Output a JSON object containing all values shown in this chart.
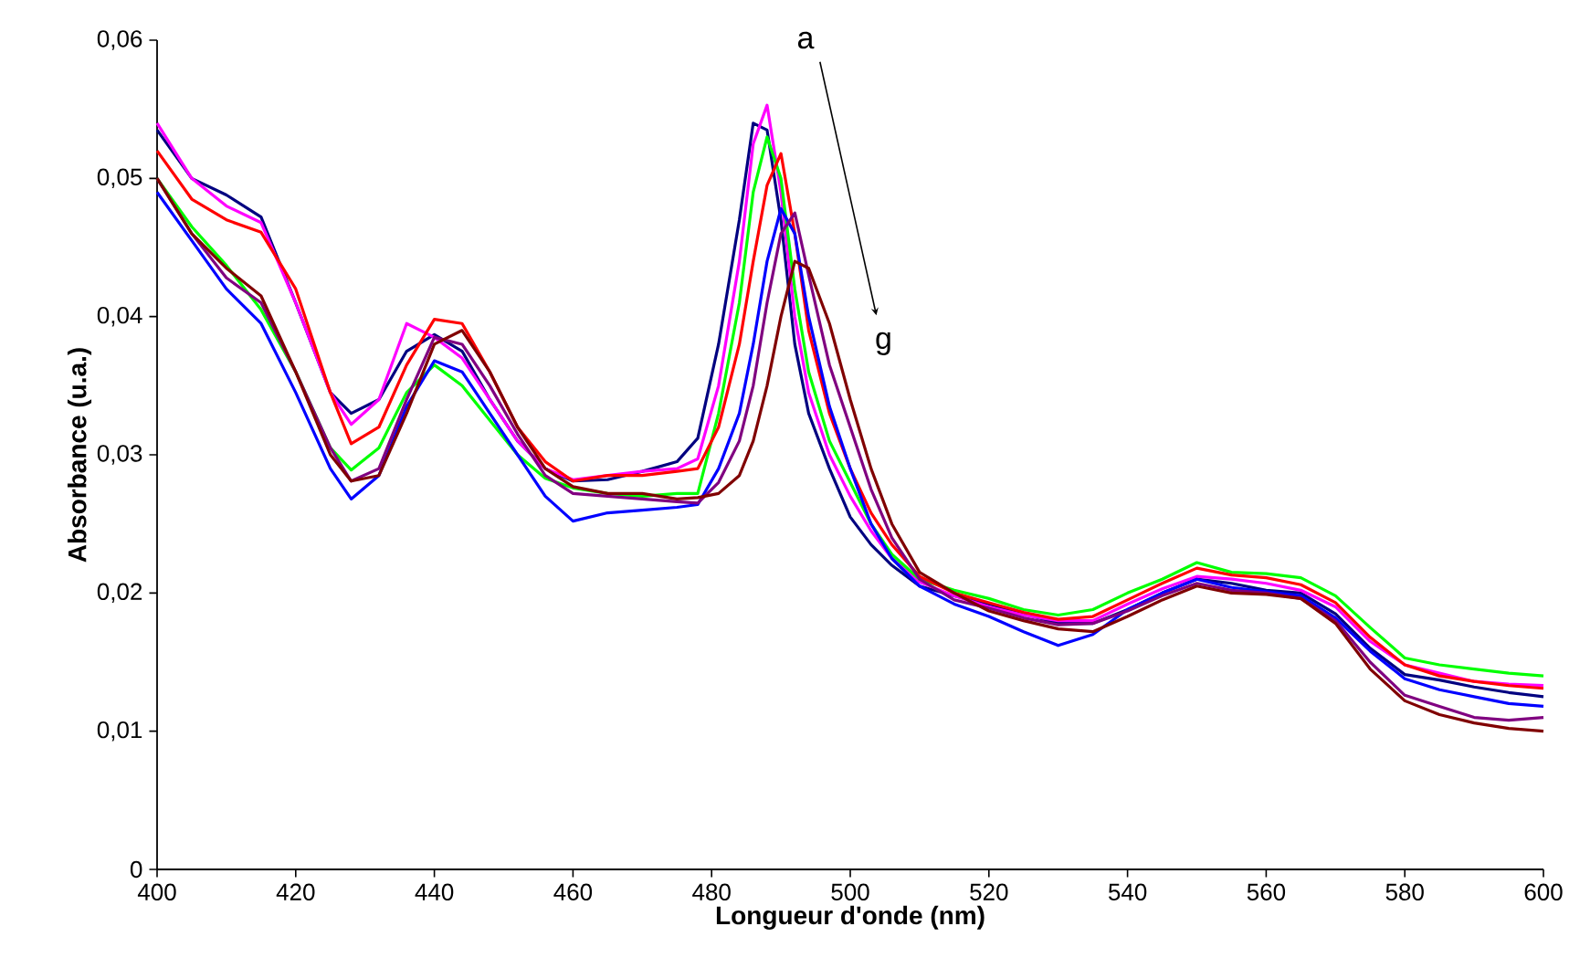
{
  "chart_data": {
    "type": "line",
    "xlabel": "Longueur d'onde (nm)",
    "ylabel": "Absorbance  (u.a.)",
    "annotations": [
      "a",
      "g"
    ],
    "x": [
      400,
      405,
      410,
      415,
      420,
      425,
      428,
      432,
      436,
      440,
      444,
      448,
      452,
      456,
      460,
      465,
      470,
      475,
      478,
      481,
      484,
      486,
      488,
      490,
      492,
      494,
      497,
      500,
      503,
      506,
      510,
      515,
      520,
      525,
      530,
      535,
      540,
      545,
      550,
      555,
      560,
      565,
      570,
      575,
      580,
      585,
      590,
      595,
      600
    ],
    "series": [
      {
        "color": "#000080",
        "values": [
          0.0535,
          0.05,
          0.0488,
          0.0472,
          0.041,
          0.0345,
          0.033,
          0.034,
          0.0375,
          0.0387,
          0.0375,
          0.034,
          0.031,
          0.029,
          0.0281,
          0.0282,
          0.0288,
          0.0295,
          0.0312,
          0.038,
          0.047,
          0.054,
          0.0535,
          0.047,
          0.038,
          0.033,
          0.029,
          0.0255,
          0.0235,
          0.022,
          0.0205,
          0.0198,
          0.0192,
          0.0185,
          0.0178,
          0.0178,
          0.0188,
          0.02,
          0.021,
          0.0207,
          0.0202,
          0.02,
          0.0185,
          0.016,
          0.0141,
          0.0137,
          0.0132,
          0.0128,
          0.0125
        ]
      },
      {
        "color": "#ff00ff",
        "values": [
          0.054,
          0.05,
          0.048,
          0.0468,
          0.041,
          0.0345,
          0.0322,
          0.034,
          0.0395,
          0.0385,
          0.037,
          0.034,
          0.031,
          0.029,
          0.0282,
          0.0285,
          0.0288,
          0.029,
          0.0297,
          0.035,
          0.044,
          0.0525,
          0.0553,
          0.049,
          0.04,
          0.0345,
          0.03,
          0.027,
          0.0245,
          0.0225,
          0.0208,
          0.0198,
          0.019,
          0.0184,
          0.018,
          0.018,
          0.0192,
          0.0203,
          0.0212,
          0.021,
          0.0207,
          0.0202,
          0.019,
          0.0165,
          0.0148,
          0.0142,
          0.0136,
          0.0134,
          0.0133
        ]
      },
      {
        "color": "#00ff00",
        "values": [
          0.05,
          0.0465,
          0.0437,
          0.0405,
          0.036,
          0.0305,
          0.0289,
          0.0305,
          0.0345,
          0.0365,
          0.035,
          0.0325,
          0.03,
          0.0283,
          0.0276,
          0.0272,
          0.027,
          0.0272,
          0.0272,
          0.033,
          0.041,
          0.049,
          0.053,
          0.05,
          0.042,
          0.036,
          0.031,
          0.028,
          0.025,
          0.0228,
          0.021,
          0.0202,
          0.0196,
          0.0188,
          0.0184,
          0.0188,
          0.02,
          0.021,
          0.0222,
          0.0215,
          0.0214,
          0.0211,
          0.0198,
          0.0175,
          0.0153,
          0.0148,
          0.0145,
          0.0142,
          0.014
        ]
      },
      {
        "color": "#ff0000",
        "values": [
          0.052,
          0.0485,
          0.047,
          0.0461,
          0.042,
          0.0345,
          0.0308,
          0.032,
          0.0365,
          0.0398,
          0.0395,
          0.036,
          0.032,
          0.0295,
          0.0281,
          0.0285,
          0.0285,
          0.0288,
          0.029,
          0.032,
          0.038,
          0.044,
          0.0495,
          0.0518,
          0.046,
          0.039,
          0.033,
          0.029,
          0.0258,
          0.0235,
          0.0212,
          0.02,
          0.0193,
          0.0186,
          0.0181,
          0.0183,
          0.0195,
          0.0207,
          0.0218,
          0.0213,
          0.0211,
          0.0206,
          0.0193,
          0.0168,
          0.0148,
          0.014,
          0.0136,
          0.0133,
          0.0131
        ]
      },
      {
        "color": "#0000ff",
        "values": [
          0.049,
          0.0455,
          0.042,
          0.0395,
          0.0345,
          0.029,
          0.0268,
          0.0285,
          0.0335,
          0.0368,
          0.036,
          0.033,
          0.03,
          0.027,
          0.0252,
          0.0258,
          0.026,
          0.0262,
          0.0264,
          0.029,
          0.033,
          0.038,
          0.044,
          0.0478,
          0.046,
          0.04,
          0.0335,
          0.029,
          0.025,
          0.0225,
          0.0205,
          0.0192,
          0.0183,
          0.0172,
          0.0162,
          0.017,
          0.0188,
          0.02,
          0.021,
          0.0204,
          0.0201,
          0.0198,
          0.0182,
          0.0158,
          0.0138,
          0.013,
          0.0125,
          0.012,
          0.0118
        ]
      },
      {
        "color": "#800080",
        "values": [
          0.05,
          0.046,
          0.0428,
          0.041,
          0.036,
          0.0305,
          0.0281,
          0.029,
          0.034,
          0.0385,
          0.038,
          0.035,
          0.0315,
          0.0285,
          0.0272,
          0.027,
          0.0268,
          0.0266,
          0.0265,
          0.028,
          0.031,
          0.035,
          0.041,
          0.046,
          0.0475,
          0.043,
          0.0365,
          0.032,
          0.0275,
          0.024,
          0.021,
          0.0195,
          0.0189,
          0.0182,
          0.0177,
          0.0178,
          0.0187,
          0.0198,
          0.0207,
          0.0202,
          0.02,
          0.0196,
          0.018,
          0.015,
          0.0126,
          0.0118,
          0.011,
          0.0108,
          0.011
        ]
      },
      {
        "color": "#800000",
        "values": [
          0.05,
          0.046,
          0.0435,
          0.0415,
          0.036,
          0.03,
          0.0281,
          0.0285,
          0.033,
          0.038,
          0.039,
          0.036,
          0.032,
          0.029,
          0.0277,
          0.0272,
          0.0272,
          0.0268,
          0.0269,
          0.0272,
          0.0285,
          0.031,
          0.035,
          0.04,
          0.044,
          0.0435,
          0.0395,
          0.034,
          0.029,
          0.025,
          0.0215,
          0.02,
          0.0187,
          0.018,
          0.0174,
          0.0172,
          0.0183,
          0.0195,
          0.0205,
          0.02,
          0.0199,
          0.0196,
          0.0178,
          0.0145,
          0.0122,
          0.0112,
          0.0106,
          0.0102,
          0.01
        ]
      }
    ],
    "xlim": [
      400,
      600
    ],
    "ylim": [
      0,
      0.06
    ],
    "xticks": [
      400,
      420,
      440,
      460,
      480,
      500,
      520,
      540,
      560,
      580,
      600
    ],
    "yticks": [
      0,
      {
        "value": 0.01,
        "label": "0,01"
      },
      {
        "value": 0.02,
        "label": "0,02"
      },
      {
        "value": 0.03,
        "label": "0,03"
      },
      {
        "value": 0.04,
        "label": "0,04"
      },
      {
        "value": 0.05,
        "label": "0,05"
      },
      {
        "value": 0.06,
        "label": "0,06"
      }
    ],
    "grid": false
  }
}
